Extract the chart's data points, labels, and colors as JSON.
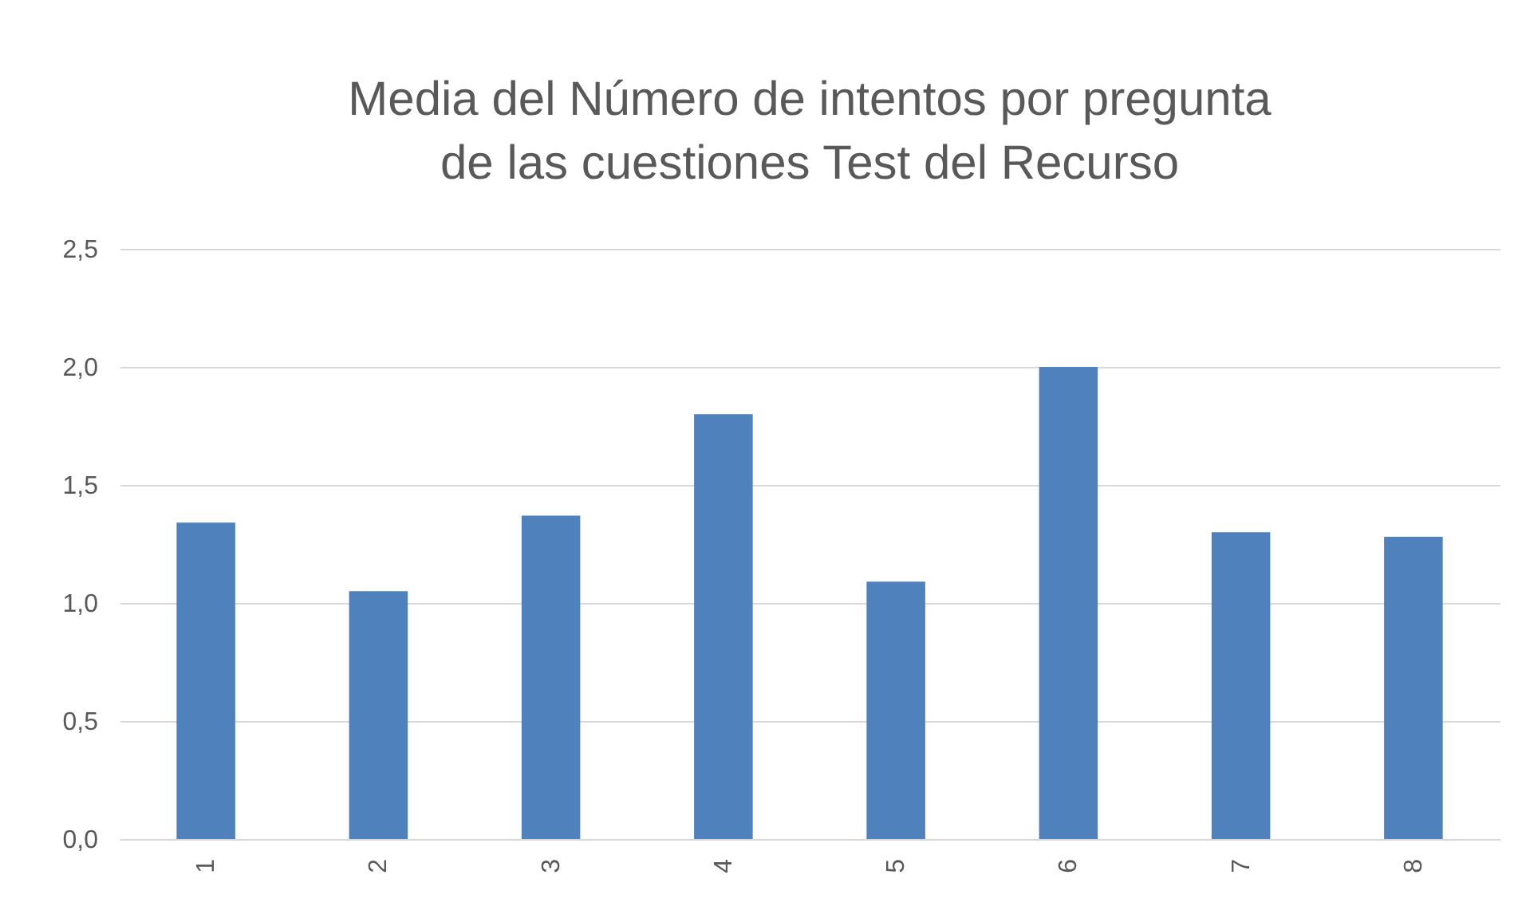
{
  "chart_data": {
    "type": "bar",
    "title": "Media del Número de intentos por pregunta de las cuestiones Test del Recurso",
    "categories": [
      "1",
      "2",
      "3",
      "4",
      "5",
      "6",
      "7",
      "8"
    ],
    "values": [
      1.34,
      1.05,
      1.37,
      1.8,
      1.09,
      2.0,
      1.3,
      1.28
    ],
    "color": "#4f81bd",
    "ylim": [
      0,
      2.5
    ],
    "yticks": [
      {
        "value": 0,
        "label": "0,0"
      },
      {
        "value": 0.5,
        "label": "0,5"
      },
      {
        "value": 1,
        "label": "1,0"
      },
      {
        "value": 1.5,
        "label": "1,5"
      },
      {
        "value": 2,
        "label": "2,0"
      },
      {
        "value": 2.5,
        "label": "2,5"
      }
    ],
    "grid": "y"
  }
}
